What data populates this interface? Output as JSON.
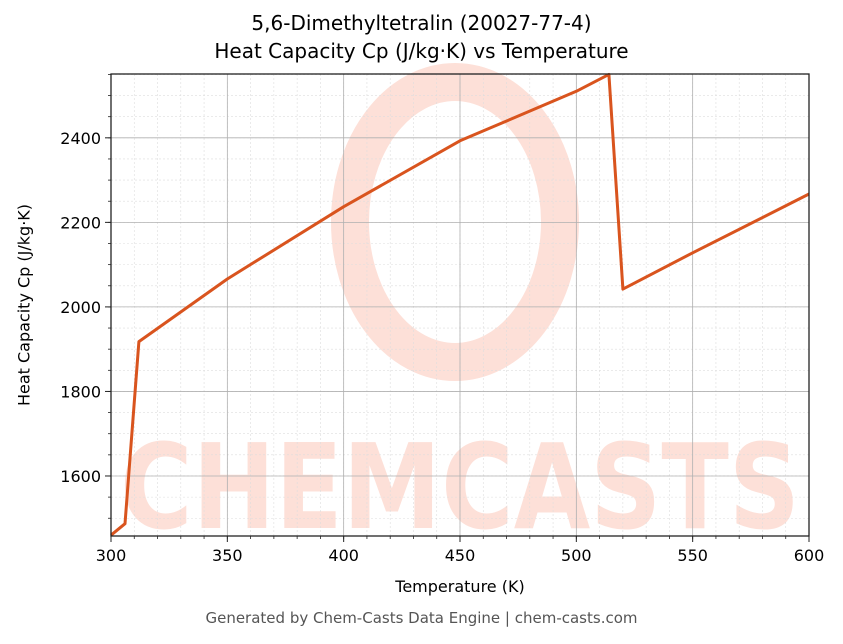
{
  "chart_data": {
    "type": "line",
    "title": "5,6-Dimethyltetralin (20027-77-4)",
    "subtitle": "Heat Capacity Cp (J/kg·K) vs Temperature",
    "xlabel": "Temperature (K)",
    "ylabel": "Heat Capacity Cp (J/kg·K)",
    "xlim": [
      300,
      600
    ],
    "ylim": [
      1458,
      2551
    ],
    "xticks": [
      300,
      350,
      400,
      450,
      500,
      550,
      600
    ],
    "yticks": [
      1600,
      1800,
      2000,
      2200,
      2400
    ],
    "grid": true,
    "legend": null,
    "series": [
      {
        "name": "Cp",
        "color": "#d9541e",
        "x": [
          300,
          306,
          312,
          350,
          400,
          450,
          500,
          514,
          520,
          550,
          600
        ],
        "y": [
          1460,
          1487,
          1918,
          2066,
          2237,
          2393,
          2510,
          2550,
          2042,
          2128,
          2267
        ]
      }
    ],
    "watermark": "CHEMCASTS"
  },
  "footer": "Generated by Chem-Casts Data Engine | chem-casts.com"
}
